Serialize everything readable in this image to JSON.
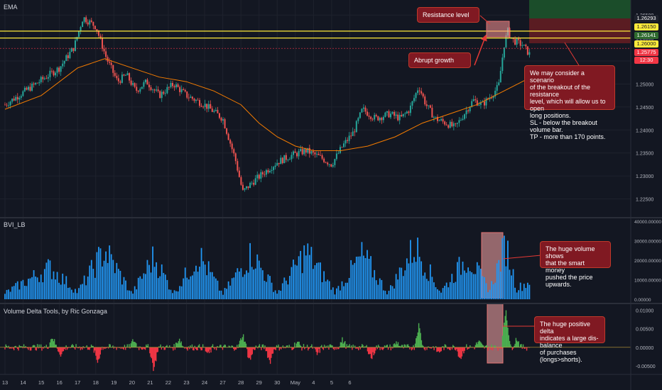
{
  "chart_data": {
    "type": "candlestick",
    "price_pane": {
      "indicator_label": "EMA",
      "y_ticks": [
        "1.26500",
        "1.26000",
        "1.25500",
        "1.25000",
        "1.24500",
        "1.24000",
        "1.23500",
        "1.23000",
        "1.22500"
      ],
      "price_tags": [
        {
          "value": "1.26293",
          "color": "#ffffff",
          "bg": "#1e222d"
        },
        {
          "value": "1.26150",
          "color": "#131722",
          "bg": "#ffeb3b"
        },
        {
          "value": "1.26141",
          "color": "#ffffff",
          "bg": "#2f6b2f"
        },
        {
          "value": "1.26000",
          "color": "#131722",
          "bg": "#ffeb3b"
        },
        {
          "value": "1.25775",
          "color": "#ffffff",
          "bg": "#f23645"
        },
        {
          "value": "12:30",
          "color": "#ffffff",
          "bg": "#f23645"
        }
      ],
      "resistance_levels": [
        1.2615,
        1.26
      ],
      "last_price": 1.25775,
      "ylim": [
        1.222,
        1.2675
      ],
      "close_path": [
        [
          0,
          1.2455
        ],
        [
          1.5,
          1.2495
        ],
        [
          3,
          1.2535
        ],
        [
          3.8,
          1.258
        ],
        [
          4.3,
          1.2645
        ],
        [
          5,
          1.2625
        ],
        [
          5.6,
          1.2555
        ],
        [
          6.2,
          1.2505
        ],
        [
          6.7,
          1.252
        ],
        [
          7.2,
          1.2485
        ],
        [
          7.8,
          1.2505
        ],
        [
          8.5,
          1.2475
        ],
        [
          9.3,
          1.25
        ],
        [
          10,
          1.2475
        ],
        [
          11,
          1.2455
        ],
        [
          12,
          1.2425
        ],
        [
          12.7,
          1.2335
        ],
        [
          13.1,
          1.2265
        ],
        [
          13.6,
          1.2285
        ],
        [
          14.2,
          1.2305
        ],
        [
          15,
          1.233
        ],
        [
          15.8,
          1.2345
        ],
        [
          16.6,
          1.2355
        ],
        [
          17.4,
          1.234
        ],
        [
          18,
          1.2325
        ],
        [
          18.6,
          1.2365
        ],
        [
          19.2,
          1.2395
        ],
        [
          19.7,
          1.2445
        ],
        [
          20.4,
          1.2425
        ],
        [
          21.2,
          1.2435
        ],
        [
          21.8,
          1.2425
        ],
        [
          22.3,
          1.2445
        ],
        [
          22.8,
          1.2495
        ],
        [
          23.2,
          1.2455
        ],
        [
          23.7,
          1.2425
        ],
        [
          24.3,
          1.2415
        ],
        [
          24.8,
          1.2405
        ],
        [
          25.3,
          1.2435
        ],
        [
          25.8,
          1.2465
        ],
        [
          26.3,
          1.2455
        ],
        [
          26.8,
          1.2475
        ],
        [
          27.2,
          1.2495
        ],
        [
          27.5,
          1.2585
        ],
        [
          27.7,
          1.2615
        ],
        [
          28.0,
          1.2595
        ],
        [
          28.5,
          1.2585
        ],
        [
          28.9,
          1.2565
        ]
      ],
      "ema_path": [
        [
          0,
          1.2445
        ],
        [
          2,
          1.2475
        ],
        [
          4,
          1.2535
        ],
        [
          5.5,
          1.2555
        ],
        [
          7,
          1.2535
        ],
        [
          8.5,
          1.2515
        ],
        [
          10,
          1.2505
        ],
        [
          11.5,
          1.2485
        ],
        [
          13,
          1.2455
        ],
        [
          14,
          1.2415
        ],
        [
          15,
          1.2385
        ],
        [
          16,
          1.2365
        ],
        [
          17,
          1.2355
        ],
        [
          18.5,
          1.2355
        ],
        [
          20,
          1.2365
        ],
        [
          21.5,
          1.2385
        ],
        [
          23,
          1.2415
        ],
        [
          24.5,
          1.2435
        ],
        [
          26,
          1.2455
        ],
        [
          27,
          1.2475
        ],
        [
          28.5,
          1.2505
        ],
        [
          29,
          1.2515
        ]
      ]
    },
    "volume_pane": {
      "indicator_label": "BVI_LB",
      "y_ticks": [
        "40000.00000",
        "30000.00000",
        "20000.00000",
        "10000.00000",
        "0.00000"
      ],
      "ylim": [
        0,
        40000
      ],
      "volume_profile": [
        [
          0,
          3500
        ],
        [
          2.5,
          18000
        ],
        [
          4,
          4000
        ],
        [
          5.5,
          28000
        ],
        [
          7,
          3000
        ],
        [
          8.2,
          24000
        ],
        [
          9.3,
          3500
        ],
        [
          10.7,
          25000
        ],
        [
          12,
          3000
        ],
        [
          13.6,
          26000
        ],
        [
          15,
          3500
        ],
        [
          16.6,
          27000
        ],
        [
          18.2,
          4000
        ],
        [
          19.7,
          25000
        ],
        [
          21.1,
          3500
        ],
        [
          22.6,
          30000
        ],
        [
          24,
          4000
        ],
        [
          25.5,
          24000
        ],
        [
          26.7,
          5000
        ],
        [
          27.6,
          31000
        ],
        [
          28.2,
          6000
        ],
        [
          28.9,
          10000
        ]
      ]
    },
    "delta_pane": {
      "indicator_label": "Volume Delta Tools, by Ric Gonzaga",
      "y_ticks": [
        "0.01000",
        "0.00500",
        "0.00000",
        "-0.00500"
      ],
      "ylim": [
        -0.0065,
        0.011
      ],
      "spikes": [
        [
          2.6,
          0.003
        ],
        [
          3.1,
          -0.002
        ],
        [
          5.1,
          -0.004
        ],
        [
          7.1,
          0.002
        ],
        [
          8.2,
          -0.006
        ],
        [
          9.6,
          0.0025
        ],
        [
          11.2,
          -0.002
        ],
        [
          13.1,
          0.0035
        ],
        [
          13.5,
          -0.0035
        ],
        [
          14.6,
          -0.004
        ],
        [
          16.1,
          0.0015
        ],
        [
          17.2,
          -0.002
        ],
        [
          18.6,
          0.002
        ],
        [
          20.2,
          -0.003
        ],
        [
          21.6,
          0.0015
        ],
        [
          22.8,
          0.006
        ],
        [
          23.9,
          -0.0015
        ],
        [
          25.1,
          -0.003
        ],
        [
          26.1,
          0.0015
        ],
        [
          27.6,
          0.0105
        ],
        [
          28.2,
          0.0025
        ]
      ]
    },
    "x_ticks": [
      "13",
      "14",
      "15",
      "16",
      "17",
      "18",
      "19",
      "20",
      "21",
      "22",
      "23",
      "24",
      "27",
      "28",
      "29",
      "30",
      "May",
      "4",
      "5",
      "6"
    ],
    "annotations": {
      "resistance": "Resistance level",
      "abrupt": "Abrupt growth",
      "scenario": "We may consider a scenario\nof the breakout of the resistance\nlevel, which will allow us to open\nlong positions.\nSL - below the breakout volume bar.\nTP - more than 170 points.",
      "volume": "The huge volume shows\nthat the smart money\npushed the price upwards.",
      "delta": "The huge positive delta\nindicates a large dis-balance\nof purchases (longs>shorts)."
    },
    "colors": {
      "bull": "#26a69a",
      "bear": "#ef5350",
      "ema": "#f57c00",
      "resistance": "#ffeb3b",
      "volume": "#2196f3",
      "delta_pos": "#4caf50",
      "delta_neg": "#f23645",
      "callout": "#801922"
    }
  }
}
